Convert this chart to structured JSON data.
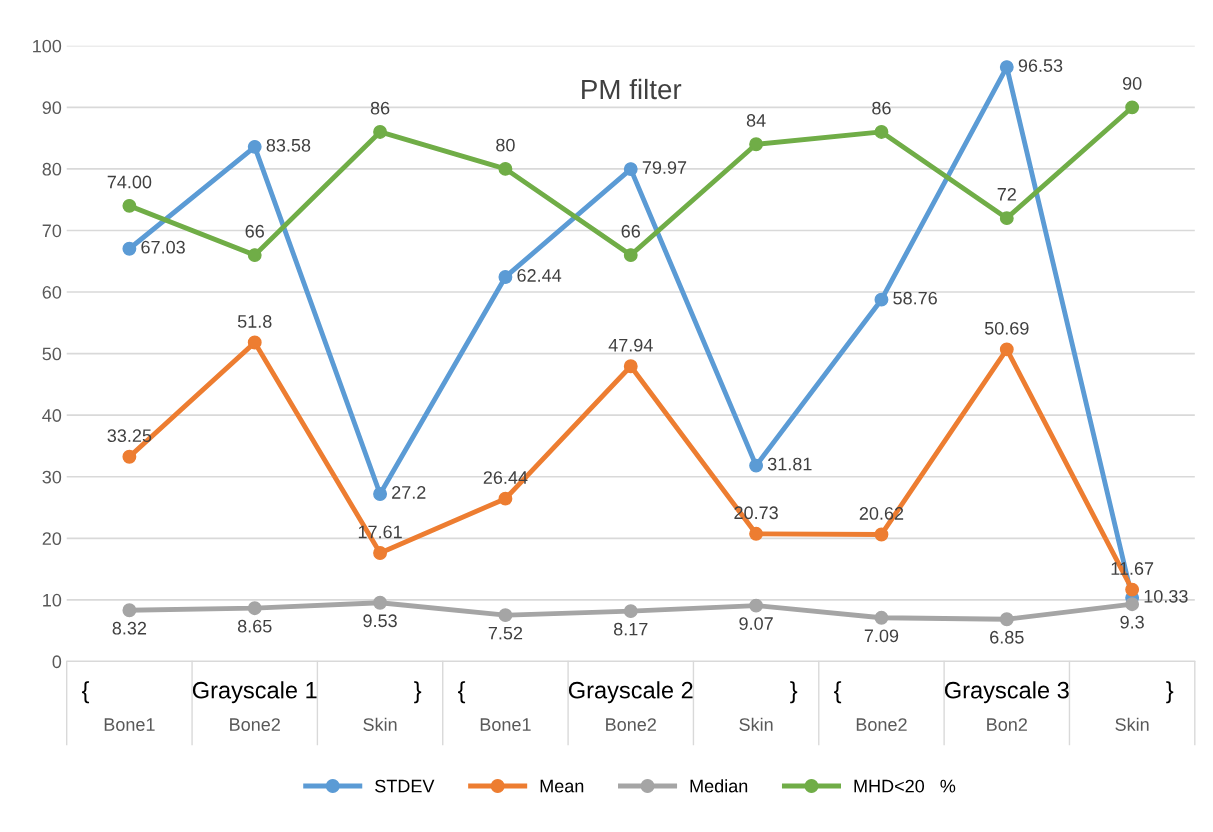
{
  "chart_data": {
    "type": "line",
    "title": "PM filter",
    "categories": [
      "Bone1",
      "Bone2",
      "Skin",
      "Bone1",
      "Bone2",
      "Skin",
      "Bone2",
      "Bon2",
      "Skin"
    ],
    "annotations": [
      "{",
      "Grayscale 1",
      "}",
      "{",
      "Grayscale 2",
      "}",
      "{",
      "Grayscale 3",
      "}"
    ],
    "series": [
      {
        "name": "STDEV",
        "color": "#5b9bd5",
        "values": [
          67.03,
          83.58,
          27.2,
          62.44,
          79.97,
          31.81,
          58.76,
          96.53,
          10.33
        ],
        "value_labels": [
          "67.03",
          "83.58",
          "27.2",
          "62.44",
          "79.97",
          "31.81",
          "58.76",
          "96.53",
          "10.33"
        ]
      },
      {
        "name": "Mean",
        "color": "#ed7d31",
        "values": [
          33.25,
          51.8,
          17.61,
          26.44,
          47.94,
          20.73,
          20.62,
          50.69,
          11.67
        ],
        "value_labels": [
          "33.25",
          "51.8",
          "17.61",
          "26.44",
          "47.94",
          "20.73",
          "20.62",
          "50.69",
          "11.67"
        ]
      },
      {
        "name": "Median",
        "color": "#a5a5a5",
        "values": [
          8.32,
          8.65,
          9.53,
          7.52,
          8.17,
          9.07,
          7.09,
          6.85,
          9.3
        ],
        "value_labels": [
          "8.32",
          "8.65",
          "9.53",
          "7.52",
          "8.17",
          "9.07",
          "7.09",
          "6.85",
          "9.3"
        ]
      },
      {
        "name": "MHD<20   %",
        "color": "#70ad47",
        "values": [
          74.0,
          66,
          86,
          80,
          66,
          84,
          86,
          72,
          90
        ],
        "value_labels": [
          "74.00",
          "66",
          "86",
          "80",
          "66",
          "84",
          "86",
          "72",
          "90"
        ]
      }
    ],
    "ylim": [
      0,
      100
    ],
    "yticks": [
      0,
      10,
      20,
      30,
      40,
      50,
      60,
      70,
      80,
      90,
      100
    ],
    "grid": "y",
    "legend": "bottom",
    "marker": "circle",
    "line_style": "solid"
  }
}
